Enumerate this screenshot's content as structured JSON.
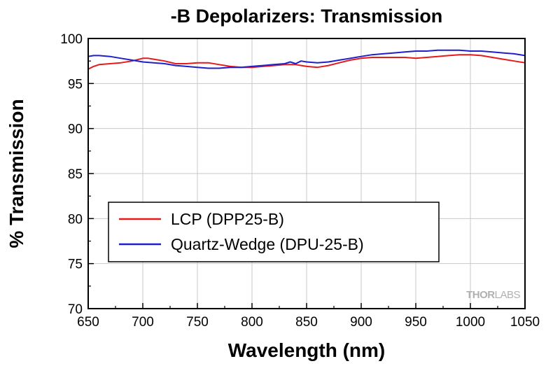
{
  "chart_data": {
    "type": "line",
    "title": "-B Depolarizers: Transmission",
    "xlabel": "Wavelength (nm)",
    "ylabel": "% Transmission",
    "xlim": [
      650,
      1050
    ],
    "ylim": [
      70,
      100
    ],
    "xticks": [
      650,
      700,
      750,
      800,
      850,
      900,
      950,
      1000,
      1050
    ],
    "yticks": [
      70,
      75,
      80,
      85,
      90,
      95,
      100
    ],
    "grid": true,
    "legend_position": "lower-left",
    "series": [
      {
        "name": "LCP (DPP25-B)",
        "color": "#e41a1c",
        "x": [
          650,
          655,
          660,
          670,
          680,
          690,
          700,
          705,
          710,
          720,
          730,
          740,
          750,
          760,
          770,
          780,
          790,
          800,
          810,
          820,
          830,
          840,
          850,
          860,
          870,
          880,
          890,
          900,
          910,
          920,
          930,
          940,
          950,
          960,
          970,
          980,
          990,
          1000,
          1010,
          1020,
          1030,
          1040,
          1050
        ],
        "y": [
          96.6,
          96.9,
          97.1,
          97.2,
          97.3,
          97.5,
          97.8,
          97.8,
          97.7,
          97.5,
          97.2,
          97.2,
          97.3,
          97.3,
          97.1,
          96.9,
          96.8,
          96.8,
          96.9,
          97.0,
          97.1,
          97.1,
          96.9,
          96.8,
          97.0,
          97.3,
          97.6,
          97.8,
          97.9,
          97.9,
          97.9,
          97.9,
          97.8,
          97.9,
          98.0,
          98.1,
          98.2,
          98.2,
          98.1,
          97.9,
          97.7,
          97.5,
          97.3
        ]
      },
      {
        "name": "Quartz-Wedge (DPU-25-B)",
        "color": "#1f1fcc",
        "x": [
          650,
          655,
          660,
          670,
          680,
          690,
          700,
          710,
          720,
          730,
          740,
          750,
          760,
          770,
          780,
          790,
          800,
          810,
          820,
          830,
          835,
          840,
          845,
          850,
          860,
          870,
          880,
          890,
          900,
          910,
          920,
          930,
          940,
          950,
          960,
          970,
          980,
          990,
          1000,
          1010,
          1020,
          1030,
          1040,
          1050
        ],
        "y": [
          98.0,
          98.1,
          98.1,
          98.0,
          97.8,
          97.6,
          97.4,
          97.3,
          97.2,
          97.0,
          96.9,
          96.8,
          96.7,
          96.7,
          96.8,
          96.8,
          96.9,
          97.0,
          97.1,
          97.2,
          97.4,
          97.2,
          97.5,
          97.4,
          97.3,
          97.4,
          97.6,
          97.8,
          98.0,
          98.2,
          98.3,
          98.4,
          98.5,
          98.6,
          98.6,
          98.7,
          98.7,
          98.7,
          98.6,
          98.6,
          98.5,
          98.4,
          98.3,
          98.1
        ]
      }
    ]
  },
  "watermark": {
    "thor": "THOR",
    "labs": "LABS"
  }
}
